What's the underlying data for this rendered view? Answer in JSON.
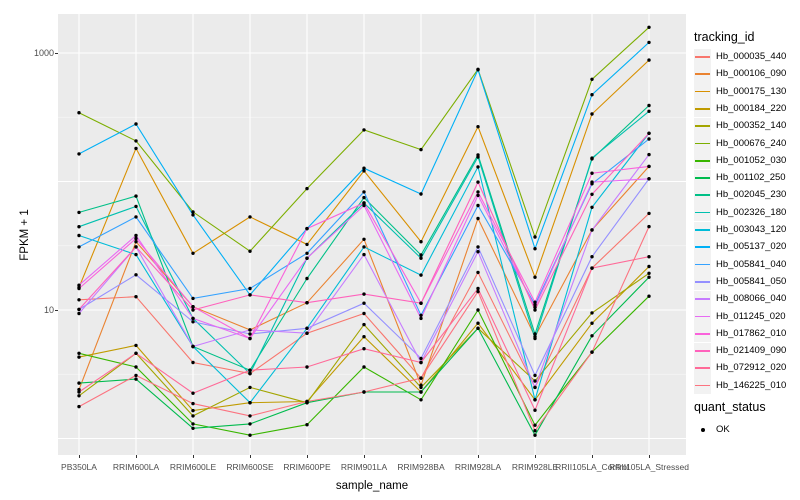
{
  "chart_data": {
    "type": "line",
    "title": "",
    "xlabel": "sample_name",
    "ylabel": "FPKM + 1",
    "y_scale": "log10",
    "y_ticks": [
      10,
      1000
    ],
    "ylim_approx": [
      0.74,
      2300
    ],
    "grid": "ggplot-grey-panel-white-gridlines",
    "legend_position": "right",
    "legend_title": "tracking_id",
    "point_legend": {
      "title": "quant_status",
      "items": [
        "OK"
      ],
      "point_color": "#000000"
    },
    "x_categories": [
      "PB350LA",
      "RRIM600LA",
      "RRIM600LE",
      "RRIM600SE",
      "RRIM600PE",
      "RRIM901LA",
      "RRIM928BA",
      "RRIM928LA",
      "RRIM928LE",
      "RRII105LA_Control",
      "RRII105LA_Stressed"
    ],
    "series": [
      {
        "name": "Hb_000035_440",
        "color": "#F8766D",
        "values": [
          12,
          12.7,
          3.9,
          3.2,
          6.6,
          9.4,
          2.95,
          19.6,
          2.5,
          21.2,
          56.5
        ]
      },
      {
        "name": "Hb_000106_090",
        "color": "#EA8331",
        "values": [
          2.4,
          34,
          10.6,
          7.0,
          11.4,
          35.5,
          2.6,
          51.5,
          6.2,
          42,
          131
        ]
      },
      {
        "name": "Hb_000175_130",
        "color": "#D89000",
        "values": [
          15,
          181,
          27.6,
          53,
          32.4,
          121,
          34,
          267,
          18,
          335,
          880
        ]
      },
      {
        "name": "Hb_000184_220",
        "color": "#C09B00",
        "values": [
          4.3,
          5.3,
          1.65,
          1.9,
          1.94,
          6.2,
          2.3,
          7.9,
          2.0,
          7.9,
          21.8
        ]
      },
      {
        "name": "Hb_000352_140",
        "color": "#A3A500",
        "values": [
          2.15,
          4.6,
          1.5,
          2.5,
          1.9,
          7.7,
          2.5,
          7.2,
          2.8,
          9.5,
          19.3
        ]
      },
      {
        "name": "Hb_000676_240",
        "color": "#7CAE00",
        "values": [
          343,
          207,
          58,
          28.7,
          88,
          252,
          177,
          747,
          37,
          624,
          1585
        ]
      },
      {
        "name": "Hb_001052_030",
        "color": "#39B600",
        "values": [
          4.6,
          3.6,
          1.3,
          1.06,
          1.28,
          3.6,
          2.0,
          10,
          1.27,
          4.7,
          12.8
        ]
      },
      {
        "name": "Hb_001102_250",
        "color": "#00BB4E",
        "values": [
          2.7,
          2.9,
          1.2,
          1.3,
          1.9,
          2.3,
          2.3,
          7.2,
          1.06,
          6.3,
          18
        ]
      },
      {
        "name": "Hb_002045_230",
        "color": "#00C087",
        "values": [
          57.5,
          77,
          5.2,
          3.4,
          17.6,
          75,
          26.8,
          161,
          6.5,
          150,
          390
        ]
      },
      {
        "name": "Hb_002326_180",
        "color": "#00C0AF",
        "values": [
          44.5,
          64,
          8.6,
          3.2,
          25.3,
          68,
          25.3,
          155,
          6.0,
          152,
          352
        ]
      },
      {
        "name": "Hb_003043_120",
        "color": "#00BCD8",
        "values": [
          38,
          27,
          5.2,
          1.9,
          7.2,
          31,
          18.7,
          130,
          2.0,
          63,
          237
        ]
      },
      {
        "name": "Hb_005137_020",
        "color": "#00B0F6",
        "values": [
          164,
          280,
          55,
          13.1,
          43,
          127,
          80,
          740,
          30,
          474,
          1210
        ]
      },
      {
        "name": "Hb_005841_040",
        "color": "#35A2FF",
        "values": [
          31,
          53,
          12.3,
          14.7,
          27.6,
          83,
          9.1,
          65,
          11,
          96,
          214
        ]
      },
      {
        "name": "Hb_005841_050",
        "color": "#9590FF",
        "values": [
          10.1,
          18.8,
          8.1,
          6.5,
          7.2,
          11.3,
          4.2,
          31,
          3.1,
          26,
          105
        ]
      },
      {
        "name": "Hb_008066_040",
        "color": "#C77CFF",
        "values": [
          9.4,
          31,
          5.2,
          7.0,
          6.6,
          27,
          3.9,
          28.4,
          2.5,
          41.9,
          162
        ]
      },
      {
        "name": "Hb_011245_020",
        "color": "#E76BF3",
        "values": [
          15.6,
          38,
          8.6,
          6.0,
          25.3,
          65,
          8.6,
          78,
          10.5,
          99,
          105
        ]
      },
      {
        "name": "Hb_017862_010",
        "color": "#FA62DB",
        "values": [
          14.7,
          36,
          10.6,
          6.0,
          43,
          68,
          11.3,
          83,
          11.5,
          116,
          131
        ]
      },
      {
        "name": "Hb_021409_090",
        "color": "#FF62BC",
        "values": [
          10.1,
          31,
          10,
          13.1,
          11.4,
          13.3,
          11.3,
          99,
          10,
          79.5,
          237
        ]
      },
      {
        "name": "Hb_072912_020",
        "color": "#FF6A98",
        "values": [
          2.3,
          4.6,
          2.25,
          3.4,
          3.6,
          5.0,
          3.9,
          14.7,
          1.66,
          21.2,
          26
        ]
      },
      {
        "name": "Hb_146225_010",
        "color": "#FC7380",
        "values": [
          1.77,
          3.1,
          1.87,
          1.5,
          1.94,
          2.3,
          2.95,
          13.9,
          1.15,
          4.7,
          44.6
        ]
      }
    ]
  },
  "style": {
    "panel_bg": "#EBEBEB",
    "grid_color": "#FFFFFF",
    "tick_label_color": "#4D4D4D",
    "key_bg": "#F2F2F2",
    "point_color": "#000000"
  }
}
